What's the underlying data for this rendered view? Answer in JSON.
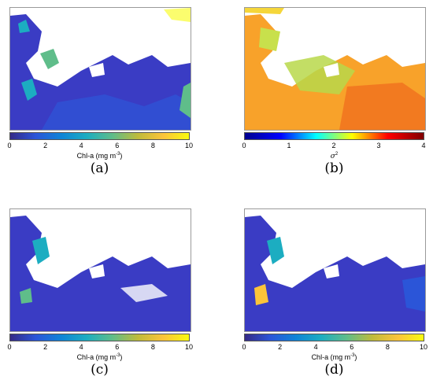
{
  "panels": [
    {
      "id": "a",
      "caption": "(a)",
      "colorbar": {
        "colormap": "parula",
        "label": "Chl-a (mg m",
        "label_sup": "-3",
        "label_close": ")",
        "range": [
          0,
          10
        ],
        "ticks": [
          "0",
          "2",
          "4",
          "6",
          "8",
          "10"
        ]
      }
    },
    {
      "id": "b",
      "caption": "(b)",
      "colorbar": {
        "colormap": "jet",
        "label": "σ",
        "label_sup": "2",
        "label_close": "",
        "range": [
          0,
          4
        ],
        "ticks": [
          "0",
          "1",
          "2",
          "3",
          "4"
        ]
      }
    },
    {
      "id": "c",
      "caption": "(c)",
      "colorbar": {
        "colormap": "parula",
        "label": "Chl-a (mg m",
        "label_sup": "-3",
        "label_close": ")",
        "range": [
          0,
          10
        ],
        "ticks": [
          "0",
          "2",
          "4",
          "6",
          "8",
          "10"
        ]
      }
    },
    {
      "id": "d",
      "caption": "(d)",
      "colorbar": {
        "colormap": "parula",
        "label": "Chl-a (mg m",
        "label_sup": "-3",
        "label_close": ")",
        "range": [
          0,
          10
        ],
        "ticks": [
          "0",
          "2",
          "4",
          "6",
          "8",
          "10"
        ]
      }
    }
  ],
  "colors": {
    "parula": [
      "#352a87",
      "#2b55d8",
      "#0f84d7",
      "#1cadc1",
      "#5fbd8a",
      "#bfbb3b",
      "#fcc43a",
      "#f9fb0e"
    ],
    "jet": [
      "#00008f",
      "#0000ff",
      "#00ffff",
      "#ffff00",
      "#ff0000",
      "#800000"
    ],
    "ocean_parula": "#3a3cc4",
    "ocean_parula_2": "#2f52d6",
    "ocean_jet": "#f8a22a",
    "ocean_jet_2": "#f5d63a",
    "land": "#ffffff"
  }
}
